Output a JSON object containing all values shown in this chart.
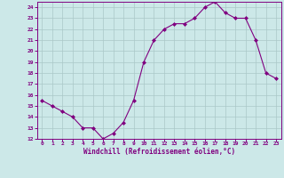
{
  "x": [
    0,
    1,
    2,
    3,
    4,
    5,
    6,
    7,
    8,
    9,
    10,
    11,
    12,
    13,
    14,
    15,
    16,
    17,
    18,
    19,
    20,
    21,
    22,
    23
  ],
  "y": [
    15.5,
    15.0,
    14.5,
    14.0,
    13.0,
    13.0,
    12.0,
    12.5,
    13.5,
    15.5,
    19.0,
    21.0,
    22.0,
    22.5,
    22.5,
    23.0,
    24.0,
    24.5,
    23.5,
    23.0,
    23.0,
    21.0,
    18.0,
    17.5
  ],
  "line_color": "#800080",
  "marker": "D",
  "marker_size": 2.0,
  "bg_color": "#cce8e8",
  "grid_color": "#aac8c8",
  "xlabel": "Windchill (Refroidissement éolien,°C)",
  "xlabel_color": "#800080",
  "tick_color": "#800080",
  "ylim": [
    12,
    24.5
  ],
  "xlim": [
    -0.5,
    23.5
  ],
  "yticks": [
    12,
    13,
    14,
    15,
    16,
    17,
    18,
    19,
    20,
    21,
    22,
    23,
    24
  ],
  "xticks": [
    0,
    1,
    2,
    3,
    4,
    5,
    6,
    7,
    8,
    9,
    10,
    11,
    12,
    13,
    14,
    15,
    16,
    17,
    18,
    19,
    20,
    21,
    22,
    23
  ],
  "xtick_labels": [
    "0",
    "1",
    "2",
    "3",
    "4",
    "5",
    "6",
    "7",
    "8",
    "9",
    "10",
    "11",
    "12",
    "13",
    "14",
    "15",
    "16",
    "17",
    "18",
    "19",
    "20",
    "21",
    "22",
    "23"
  ],
  "ytick_labels": [
    "12",
    "13",
    "14",
    "15",
    "16",
    "17",
    "18",
    "19",
    "20",
    "21",
    "22",
    "23",
    "24"
  ],
  "spine_color": "#800080",
  "linewidth": 0.8
}
